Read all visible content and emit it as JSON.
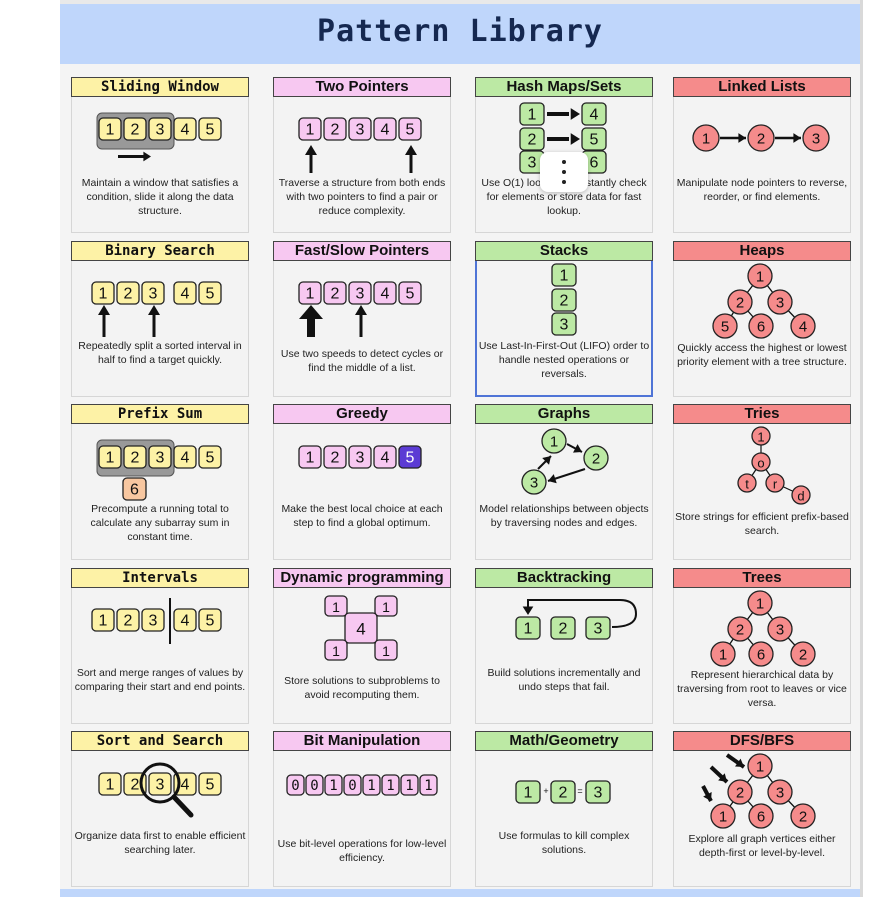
{
  "title": "Pattern Library",
  "cards": [
    {
      "title": "Sliding Window",
      "description": "Maintain a window that satisfies a condition, slide it along the data structure."
    },
    {
      "title": "Two Pointers",
      "description": "Traverse a structure from both ends with two pointers to find a pair or reduce complexity."
    },
    {
      "title": "Hash Maps/Sets",
      "description": "Use O(1) lookups to instantly check for elements or store data for fast lookup."
    },
    {
      "title": "Linked Lists",
      "description": "Manipulate node pointers to reverse, reorder, or find elements."
    },
    {
      "title": "Binary Search",
      "description": "Repeatedly split a sorted interval in half to find a target quickly."
    },
    {
      "title": "Fast/Slow Pointers",
      "description": "Use two speeds to detect cycles or find the middle of a list."
    },
    {
      "title": "Stacks",
      "description": "Use Last-In-First-Out (LIFO) order to handle nested operations or reversals."
    },
    {
      "title": "Heaps",
      "description": "Quickly access the highest or lowest priority element with a tree structure."
    },
    {
      "title": "Prefix Sum",
      "description": "Precompute a running total to calculate any subarray sum in constant time."
    },
    {
      "title": "Greedy",
      "description": "Make the best local choice at each step to find a global optimum."
    },
    {
      "title": "Graphs",
      "description": "Model relationships between objects by traversing nodes and edges."
    },
    {
      "title": "Tries",
      "description": "Store strings for efficient prefix-based search."
    },
    {
      "title": "Intervals",
      "description": "Sort and merge ranges of values by comparing their start and end points."
    },
    {
      "title": "Dynamic programming",
      "description": "Store solutions to subproblems to avoid recomputing them."
    },
    {
      "title": "Backtracking",
      "description": "Build solutions incrementally and undo steps that fail."
    },
    {
      "title": "Trees",
      "description": "Represent hierarchical data by traversing from root to leaves or vice versa."
    },
    {
      "title": "Sort and Search",
      "description": "Organize data first to enable efficient searching later."
    },
    {
      "title": "Bit Manipulation",
      "description": "Use bit-level operations for low-level efficiency."
    },
    {
      "title": "Math/Geometry",
      "description": "Use formulas to kill complex solutions."
    },
    {
      "title": "DFS/BFS",
      "description": "Explore all graph vertices either depth-first or level-by-level."
    }
  ],
  "array_values": [
    "1",
    "2",
    "3",
    "4",
    "5"
  ],
  "prefix_sum_value": "6",
  "dp_values": [
    "1",
    "1",
    "4",
    "1",
    "1"
  ],
  "bits": [
    "0",
    "0",
    "1",
    "0",
    "1",
    "1",
    "1",
    "1"
  ],
  "math_values": [
    "1",
    "+",
    "2",
    "=",
    "3"
  ],
  "trie_letters": [
    "1",
    "o",
    "t",
    "r",
    "d"
  ],
  "heap_values": [
    "1",
    "2",
    "3",
    "5",
    "6",
    "4"
  ],
  "tree_values": [
    "1",
    "2",
    "3",
    "1",
    "6",
    "2"
  ],
  "colors": {
    "title_bar": "#bfd6fb",
    "title_text": "#152850",
    "yellow": "#fdf2a6",
    "pink": "#f7c8f1",
    "green": "#bce9a4",
    "red": "#f58b8b",
    "cell_yellow": "#fdf2a6",
    "cell_pink": "#f7c8f1",
    "cell_green": "#bce9a4",
    "cell_red": "#f58b8b",
    "greedy_highlight": "#5b3bd4",
    "prefix_orange": "#f8c7a0",
    "selection": "#4f74d6"
  },
  "icons": [
    "more-options-icon",
    "magnifier-icon",
    "arrow-icon"
  ]
}
